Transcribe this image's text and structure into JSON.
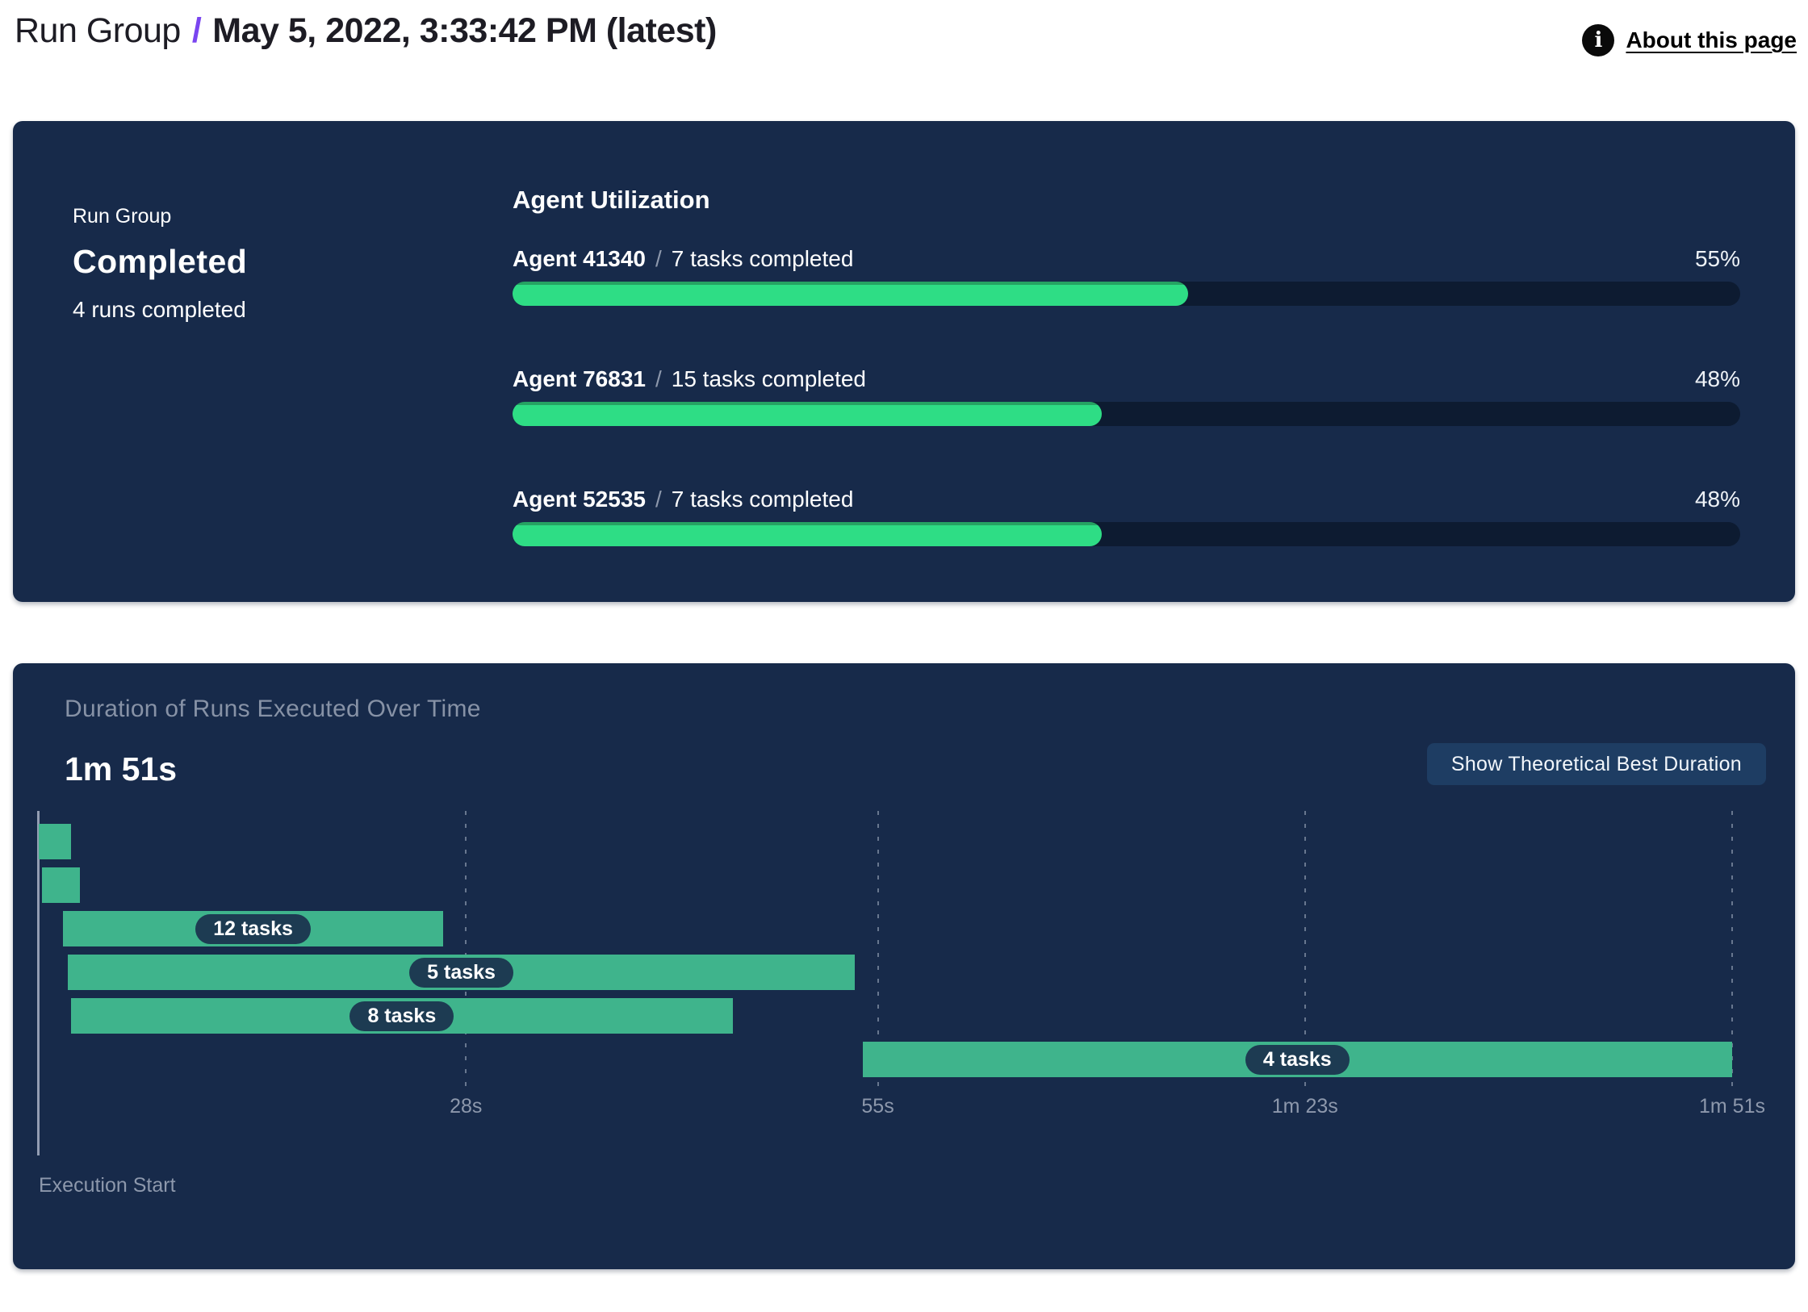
{
  "header": {
    "breadcrumb": "Run Group",
    "separator": "/",
    "title": "May 5, 2022, 3:33:42 PM (latest)",
    "about_link": "About this page",
    "info_icon_glyph": "i"
  },
  "run_group_panel": {
    "label": "Run Group",
    "status": "Completed",
    "runs_summary": "4 runs completed",
    "utilization": {
      "heading": "Agent Utilization",
      "agents": [
        {
          "name": "Agent 41340",
          "separator": "/",
          "tasks": "7 tasks completed",
          "percent": 55,
          "percent_label": "55%"
        },
        {
          "name": "Agent 76831",
          "separator": "/",
          "tasks": "15 tasks completed",
          "percent": 48,
          "percent_label": "48%"
        },
        {
          "name": "Agent 52535",
          "separator": "/",
          "tasks": "7 tasks completed",
          "percent": 48,
          "percent_label": "48%"
        }
      ]
    }
  },
  "duration_panel": {
    "title": "Duration of Runs Executed Over Time",
    "total_duration": "1m 51s",
    "button_label": "Show Theoretical Best Duration",
    "execution_start_label": "Execution Start"
  },
  "chart_data": {
    "type": "bar",
    "subtype": "gantt-timeline",
    "title": "Duration of Runs Executed Over Time",
    "total_duration_label": "1m 51s",
    "xlabel": "Execution Start",
    "x_unit": "seconds",
    "xlim": [
      0,
      111
    ],
    "grid": "dashed-vertical",
    "x_ticks": [
      {
        "value": 28,
        "label": "28s"
      },
      {
        "value": 55,
        "label": "55s"
      },
      {
        "value": 83,
        "label": "1m 23s"
      },
      {
        "value": 111,
        "label": "1m 51s"
      }
    ],
    "runs": [
      {
        "start_s": 0.0,
        "end_s": 2.1,
        "label": ""
      },
      {
        "start_s": 0.2,
        "end_s": 2.7,
        "label": ""
      },
      {
        "start_s": 1.6,
        "end_s": 26.5,
        "label": "12 tasks"
      },
      {
        "start_s": 1.9,
        "end_s": 53.5,
        "label": "5 tasks"
      },
      {
        "start_s": 2.1,
        "end_s": 45.5,
        "label": "8 tasks"
      },
      {
        "start_s": 54.0,
        "end_s": 111.0,
        "label": "4 tasks"
      }
    ]
  },
  "colors": {
    "panel_navy": "#172a4a",
    "track_navy": "#0d1b31",
    "progress_green": "#2edd85",
    "progress_green_edge": "#26a263",
    "gantt_green": "#3fb48c",
    "pill_navy": "#1d3b52",
    "accent_purple": "#7a45f0",
    "muted_text": "#8d98ac",
    "button_navy": "#1e3d63"
  }
}
